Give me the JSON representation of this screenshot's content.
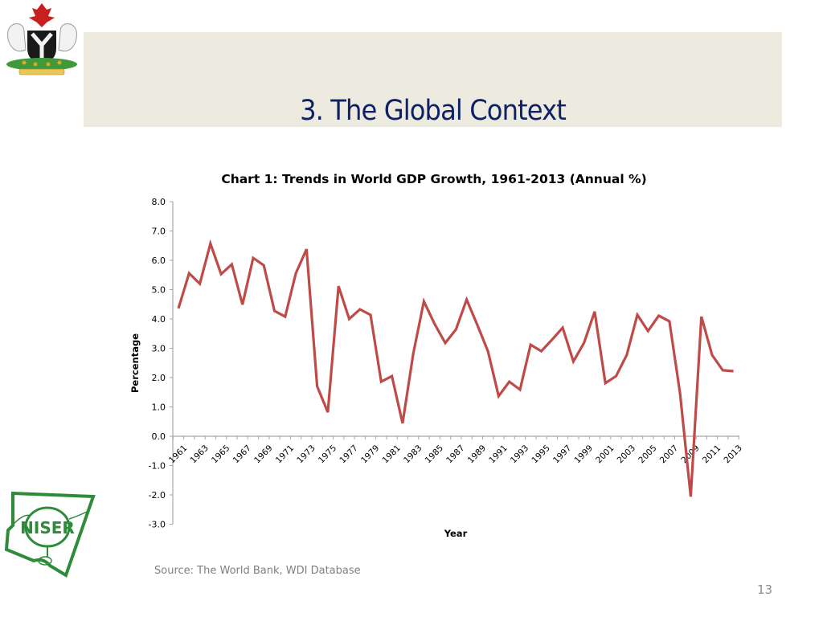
{
  "slide": {
    "title": "3. The Global Context",
    "source": "Source: The World Bank, WDI Database",
    "page_number": "13",
    "logos": [
      "nigeria-coat-of-arms",
      "niser-logo"
    ],
    "niser_text": "NISER"
  },
  "colors": {
    "title_band": "#edeae0",
    "title_text": "#0f2163",
    "series_line": "#be4b48",
    "logo_green": "#2e8b3a"
  },
  "chart_data": {
    "type": "line",
    "title": "Chart 1: Trends in World GDP Growth, 1961-2013 (Annual %)",
    "xlabel": "Year",
    "ylabel": "Percentage",
    "ylim": [
      -3.0,
      8.0
    ],
    "yticks": [
      "-3.0",
      "-2.0",
      "-1.0",
      "0.0",
      "1.0",
      "2.0",
      "3.0",
      "4.0",
      "5.0",
      "6.0",
      "7.0",
      "8.0"
    ],
    "ytick_values": [
      -3,
      -2,
      -1,
      0,
      1,
      2,
      3,
      4,
      5,
      6,
      7,
      8
    ],
    "x": [
      1961,
      1962,
      1963,
      1964,
      1965,
      1966,
      1967,
      1968,
      1969,
      1970,
      1971,
      1972,
      1973,
      1974,
      1975,
      1976,
      1977,
      1978,
      1979,
      1980,
      1981,
      1982,
      1983,
      1984,
      1985,
      1986,
      1987,
      1988,
      1989,
      1990,
      1991,
      1992,
      1993,
      1994,
      1995,
      1996,
      1997,
      1998,
      1999,
      2000,
      2001,
      2002,
      2003,
      2004,
      2005,
      2006,
      2007,
      2008,
      2009,
      2010,
      2011,
      2012,
      2013
    ],
    "xtick_labels": [
      "1961",
      "1963",
      "1965",
      "1967",
      "1969",
      "1971",
      "1973",
      "1975",
      "1977",
      "1979",
      "1981",
      "1983",
      "1985",
      "1987",
      "1989",
      "1991",
      "1993",
      "1995",
      "1997",
      "1999",
      "2001",
      "2003",
      "2005",
      "2007",
      "2009",
      "2011",
      "2013"
    ],
    "grid": false,
    "legend": "none",
    "series": [
      {
        "name": "World GDP Growth (Annual %)",
        "values": [
          4.36,
          5.56,
          5.2,
          6.57,
          5.53,
          5.86,
          4.49,
          6.08,
          5.83,
          4.27,
          4.08,
          5.56,
          6.38,
          1.7,
          0.82,
          5.12,
          4.0,
          4.33,
          4.14,
          1.86,
          2.05,
          0.44,
          2.82,
          4.6,
          3.83,
          3.18,
          3.64,
          4.66,
          3.8,
          2.9,
          1.37,
          1.86,
          1.59,
          3.12,
          2.9,
          3.29,
          3.7,
          2.55,
          3.18,
          4.25,
          1.81,
          2.05,
          2.77,
          4.14,
          3.59,
          4.11,
          3.92,
          1.45,
          -2.06,
          4.08,
          2.77,
          2.25,
          2.22
        ]
      }
    ]
  }
}
